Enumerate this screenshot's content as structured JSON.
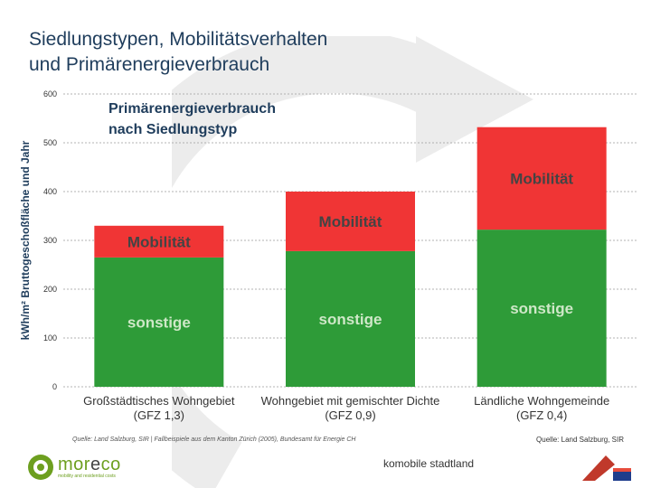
{
  "slide": {
    "title_line1": "Siedlungstypen, Mobilitätsverhalten",
    "title_line2": "und Primärenergieverbrauch",
    "slide_source": "Quelle: Land Salzburg, SIR",
    "footer_text": "komobile stadtland",
    "logo_name_part1": "mor",
    "logo_name_part2": "e",
    "logo_name_part3": "co",
    "logo_tagline": "mobility and residential costs"
  },
  "chart_data": {
    "type": "bar",
    "stacked": true,
    "title": "Primärenergieverbrauch nach Siedlungstyp",
    "title_lines": [
      "Primärenergieverbrauch",
      "nach Siedlungstyp"
    ],
    "ylabel": "kWh/m² Bruttogeschoßfläche und Jahr",
    "xlabel": "",
    "ylim": [
      0,
      600
    ],
    "yticks": [
      0,
      100,
      200,
      300,
      400,
      500,
      600
    ],
    "grid": true,
    "categories": [
      [
        "Großstädtisches Wohngebiet",
        "(GFZ 1,3)"
      ],
      [
        "Wohngebiet mit gemischter Dichte",
        "(GFZ 0,9)"
      ],
      [
        "Ländliche Wohngemeinde",
        "(GFZ 0,4)"
      ]
    ],
    "series": [
      {
        "name": "sonstige",
        "color": "#2e9b38",
        "values": [
          265,
          278,
          322
        ]
      },
      {
        "name": "Mobilität",
        "color": "#f03535",
        "values": [
          65,
          122,
          210
        ]
      }
    ],
    "source": "Quelle: Land Salzburg, SIR | Fallbeispiele aus dem Kanton Zürich (2005), Bundesamt für Energie CH"
  }
}
